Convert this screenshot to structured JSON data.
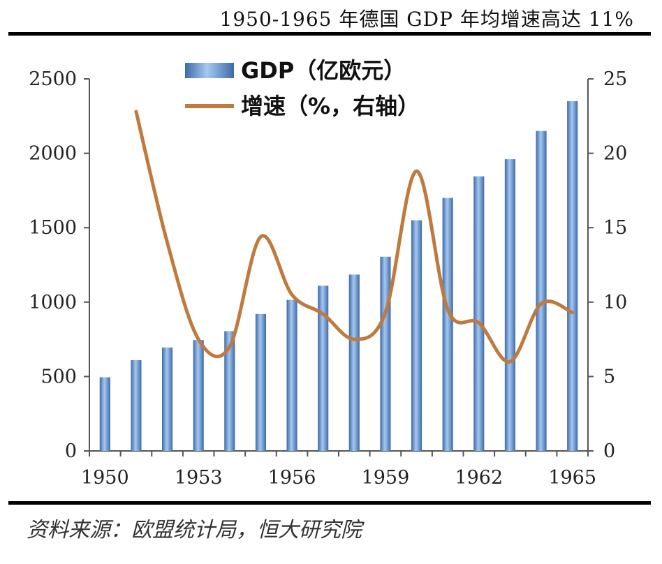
{
  "title": "1950-1965 年德国 GDP 年均增速高达 11%",
  "source": "资料来源：欧盟统计局，恒大研究院",
  "colors": {
    "bar": "#4a78b8",
    "bar_light": "#9cc0ea",
    "line": "#bf7a3e"
  },
  "chart_data": {
    "type": "bar",
    "categories": [
      "1950",
      "1951",
      "1952",
      "1953",
      "1954",
      "1955",
      "1956",
      "1957",
      "1958",
      "1959",
      "1960",
      "1961",
      "1962",
      "1963",
      "1964",
      "1965"
    ],
    "x_tick_labels": [
      "1950",
      "1953",
      "1956",
      "1959",
      "1962",
      "1965"
    ],
    "series": [
      {
        "name": "GDP（亿欧元）",
        "type": "bar",
        "axis": "left",
        "values": [
          495,
          610,
          695,
          745,
          805,
          920,
          1015,
          1110,
          1185,
          1305,
          1550,
          1700,
          1845,
          1960,
          2150,
          2350
        ]
      },
      {
        "name": "增速（%，右轴）",
        "type": "line",
        "axis": "right",
        "values": [
          null,
          22.8,
          14.0,
          7.5,
          7.0,
          14.4,
          10.5,
          9.2,
          7.5,
          9.3,
          18.8,
          9.5,
          8.6,
          6.0,
          9.9,
          9.3
        ]
      }
    ],
    "y_left": {
      "min": 0,
      "max": 2500,
      "ticks": [
        0,
        500,
        1000,
        1500,
        2000,
        2500
      ]
    },
    "y_right": {
      "min": 0,
      "max": 25,
      "ticks": [
        0,
        5,
        10,
        15,
        20,
        25
      ]
    },
    "legend_position": "top-left",
    "grid": false
  }
}
